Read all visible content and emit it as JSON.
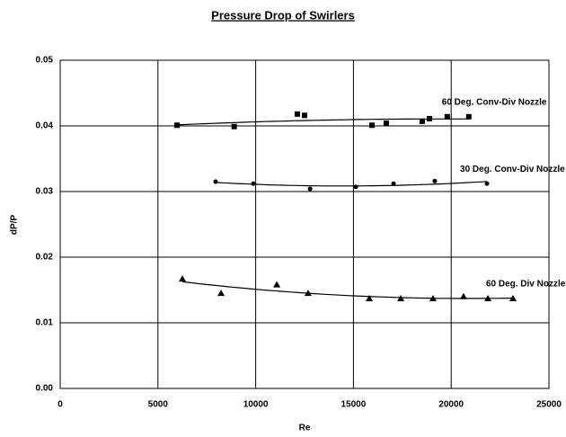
{
  "chart_data": {
    "type": "scatter",
    "title": "Pressure Drop of Swirlers",
    "x_label": "Re",
    "y_label": "dP/P",
    "xlim": [
      0,
      25000
    ],
    "ylim": [
      0,
      0.05
    ],
    "xticks": [
      0,
      5000,
      10000,
      15000,
      20000,
      25000
    ],
    "yticks": [
      {
        "value": 0,
        "label": "0.00"
      },
      0.01,
      0.02,
      0.03,
      0.04,
      0.05
    ],
    "grid": true,
    "trendline": true,
    "series": [
      {
        "name": "60 Deg. Conv-Div Nozzle",
        "color": "#000000",
        "marker": "square",
        "x": [
          5974,
          8900,
          12130,
          12500,
          15950,
          16680,
          18520,
          18890,
          19800,
          20900
        ],
        "values": [
          0.0401,
          0.0399,
          0.0418,
          0.0416,
          0.0401,
          0.0404,
          0.0407,
          0.0411,
          0.0414,
          0.0414
        ]
      },
      {
        "name": "30 Deg. Conv-Div Nozzle",
        "color": "#000000",
        "marker": "circle",
        "x": [
          7950,
          9880,
          12780,
          15120,
          17050,
          19160,
          21830
        ],
        "values": [
          0.0315,
          0.0312,
          0.0304,
          0.0307,
          0.0312,
          0.0316,
          0.0312
        ]
      },
      {
        "name": "60 Deg. Div Nozzle",
        "color": "#000000",
        "marker": "triangle",
        "x": [
          6250,
          8230,
          11080,
          12680,
          15810,
          17420,
          19070,
          20630,
          21880,
          23160
        ],
        "values": [
          0.0167,
          0.0145,
          0.0158,
          0.0145,
          0.0137,
          0.0137,
          0.0137,
          0.014,
          0.0137,
          0.0137
        ]
      }
    ]
  }
}
